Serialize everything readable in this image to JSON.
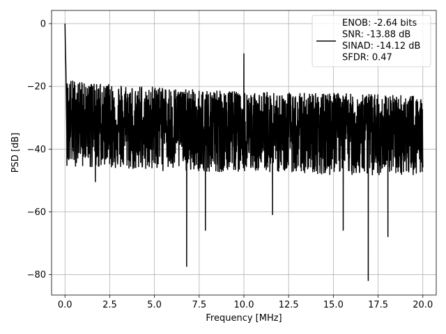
{
  "chart_data": {
    "type": "line",
    "xlabel": "Frequency [MHz]",
    "ylabel": "PSD [dB]",
    "xlim": [
      -0.75,
      20.75
    ],
    "ylim": [
      -86.5,
      4.2
    ],
    "xticks": [
      0.0,
      2.5,
      5.0,
      7.5,
      10.0,
      12.5,
      15.0,
      17.5,
      20.0
    ],
    "xtick_labels": [
      "0.0",
      "2.5",
      "5.0",
      "7.5",
      "10.0",
      "12.5",
      "15.0",
      "17.5",
      "20.0"
    ],
    "yticks": [
      0,
      -20,
      -40,
      -60,
      -80
    ],
    "ytick_labels": [
      "0",
      "−20",
      "−40",
      "−60",
      "−80"
    ],
    "grid": true,
    "legend_position": "top-right",
    "series": [
      {
        "name": "ENOB: -2.64 bits\nSNR: -13.88 dB\nSINAD: -14.12 dB\nSFDR: 0.47",
        "color": "#000000",
        "spikes": [
          {
            "x": 0.0,
            "y": 0.0
          },
          {
            "x": 0.02,
            "y": -7.0
          },
          {
            "x": 0.05,
            "y": -14.0
          },
          {
            "x": 10.0,
            "y": -9.5
          }
        ],
        "dips": [
          {
            "x": 6.8,
            "y": -77.5
          },
          {
            "x": 7.85,
            "y": -66.0
          },
          {
            "x": 16.95,
            "y": -82.0
          },
          {
            "x": 18.05,
            "y": -68.0
          },
          {
            "x": 15.55,
            "y": -66.0
          },
          {
            "x": 11.6,
            "y": -61.0
          },
          {
            "x": 1.7,
            "y": -50.5
          }
        ],
        "noise_envelope": [
          {
            "x": 0.1,
            "upper": -18.0,
            "lower": -46.0
          },
          {
            "x": 2.5,
            "upper": -19.0,
            "lower": -47.0
          },
          {
            "x": 5.0,
            "upper": -20.0,
            "lower": -48.0
          },
          {
            "x": 7.5,
            "upper": -21.0,
            "lower": -48.0
          },
          {
            "x": 10.0,
            "upper": -21.5,
            "lower": -48.0
          },
          {
            "x": 12.5,
            "upper": -22.0,
            "lower": -48.0
          },
          {
            "x": 15.0,
            "upper": -22.0,
            "lower": -49.0
          },
          {
            "x": 17.5,
            "upper": -22.5,
            "lower": -49.0
          },
          {
            "x": 20.0,
            "upper": -23.0,
            "lower": -49.0
          }
        ],
        "x_range": [
          0.0,
          20.0
        ]
      }
    ]
  }
}
